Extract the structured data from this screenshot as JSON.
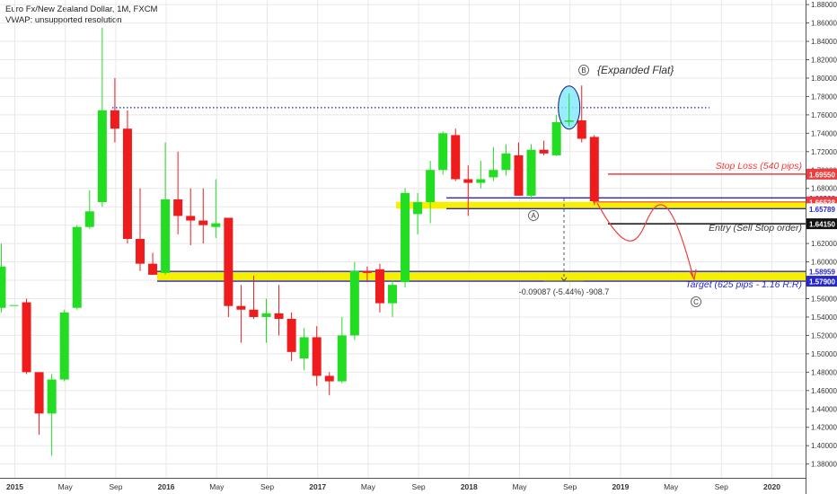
{
  "header": {
    "title": "Euro Fx/New Zealand Dollar, 1M, FXCM",
    "indicator": "VWAP: unsupported resolution"
  },
  "chart_data": {
    "type": "candlestick",
    "symbol": "EURNZD",
    "timeframe": "1M",
    "ylim": [
      1.365,
      1.885
    ],
    "y_ticks": [
      "1.38000",
      "1.40000",
      "1.42000",
      "1.44000",
      "1.46000",
      "1.48000",
      "1.50000",
      "1.52000",
      "1.54000",
      "1.56000",
      "1.58000",
      "1.60000",
      "1.62000",
      "1.64000",
      "1.66000",
      "1.68000",
      "1.70000",
      "1.72000",
      "1.74000",
      "1.76000",
      "1.78000",
      "1.80000",
      "1.82000",
      "1.84000",
      "1.86000",
      "1.88000"
    ],
    "x_ticks": [
      {
        "label": "2015",
        "m": 0,
        "bold": true
      },
      {
        "label": "May",
        "m": 4
      },
      {
        "label": "Sep",
        "m": 8
      },
      {
        "label": "2016",
        "m": 12,
        "bold": true
      },
      {
        "label": "May",
        "m": 16
      },
      {
        "label": "Sep",
        "m": 20
      },
      {
        "label": "2017",
        "m": 24,
        "bold": true
      },
      {
        "label": "May",
        "m": 28
      },
      {
        "label": "Sep",
        "m": 32
      },
      {
        "label": "2018",
        "m": 36,
        "bold": true
      },
      {
        "label": "May",
        "m": 40
      },
      {
        "label": "Sep",
        "m": 44
      },
      {
        "label": "2019",
        "m": 48,
        "bold": true
      },
      {
        "label": "May",
        "m": 52
      },
      {
        "label": "Sep",
        "m": 56
      },
      {
        "label": "2020",
        "m": 60,
        "bold": true
      }
    ],
    "candles": [
      {
        "date": "2014-12",
        "o": 1.55,
        "h": 1.62,
        "l": 1.545,
        "c": 1.595
      },
      {
        "date": "2015-01",
        "o": 1.553,
        "h": 1.553,
        "l": 1.553,
        "c": 1.553
      },
      {
        "date": "2015-02",
        "o": 1.556,
        "h": 1.56,
        "l": 1.478,
        "c": 1.48
      },
      {
        "date": "2015-03",
        "o": 1.48,
        "h": 1.48,
        "l": 1.412,
        "c": 1.435
      },
      {
        "date": "2015-04",
        "o": 1.435,
        "h": 1.478,
        "l": 1.389,
        "c": 1.472
      },
      {
        "date": "2015-05",
        "o": 1.472,
        "h": 1.548,
        "l": 1.47,
        "c": 1.545
      },
      {
        "date": "2015-06",
        "o": 1.55,
        "h": 1.64,
        "l": 1.548,
        "c": 1.638
      },
      {
        "date": "2015-07",
        "o": 1.638,
        "h": 1.678,
        "l": 1.636,
        "c": 1.655
      },
      {
        "date": "2015-08",
        "o": 1.665,
        "h": 1.855,
        "l": 1.66,
        "c": 1.765
      },
      {
        "date": "2015-09",
        "o": 1.765,
        "h": 1.8,
        "l": 1.73,
        "c": 1.745
      },
      {
        "date": "2015-10",
        "o": 1.745,
        "h": 1.765,
        "l": 1.62,
        "c": 1.625
      },
      {
        "date": "2015-11",
        "o": 1.625,
        "h": 1.68,
        "l": 1.59,
        "c": 1.598
      },
      {
        "date": "2015-12",
        "o": 1.598,
        "h": 1.61,
        "l": 1.586,
        "c": 1.586
      },
      {
        "date": "2016-01",
        "o": 1.588,
        "h": 1.73,
        "l": 1.586,
        "c": 1.668
      },
      {
        "date": "2016-02",
        "o": 1.668,
        "h": 1.72,
        "l": 1.63,
        "c": 1.65
      },
      {
        "date": "2016-03",
        "o": 1.65,
        "h": 1.68,
        "l": 1.618,
        "c": 1.645
      },
      {
        "date": "2016-04",
        "o": 1.645,
        "h": 1.68,
        "l": 1.62,
        "c": 1.64
      },
      {
        "date": "2016-05",
        "o": 1.638,
        "h": 1.69,
        "l": 1.626,
        "c": 1.642
      },
      {
        "date": "2016-06",
        "o": 1.648,
        "h": 1.648,
        "l": 1.54,
        "c": 1.552
      },
      {
        "date": "2016-07",
        "o": 1.552,
        "h": 1.575,
        "l": 1.512,
        "c": 1.548
      },
      {
        "date": "2016-08",
        "o": 1.548,
        "h": 1.585,
        "l": 1.538,
        "c": 1.54
      },
      {
        "date": "2016-09",
        "o": 1.54,
        "h": 1.56,
        "l": 1.512,
        "c": 1.544
      },
      {
        "date": "2016-10",
        "o": 1.544,
        "h": 1.575,
        "l": 1.52,
        "c": 1.538
      },
      {
        "date": "2016-11",
        "o": 1.538,
        "h": 1.545,
        "l": 1.492,
        "c": 1.502
      },
      {
        "date": "2016-12",
        "o": 1.495,
        "h": 1.528,
        "l": 1.482,
        "c": 1.518
      },
      {
        "date": "2017-01",
        "o": 1.518,
        "h": 1.53,
        "l": 1.465,
        "c": 1.476
      },
      {
        "date": "2017-02",
        "o": 1.476,
        "h": 1.48,
        "l": 1.455,
        "c": 1.47
      },
      {
        "date": "2017-03",
        "o": 1.47,
        "h": 1.54,
        "l": 1.468,
        "c": 1.52
      },
      {
        "date": "2017-04",
        "o": 1.52,
        "h": 1.6,
        "l": 1.515,
        "c": 1.59
      },
      {
        "date": "2017-05",
        "o": 1.59,
        "h": 1.595,
        "l": 1.578,
        "c": 1.588
      },
      {
        "date": "2017-06",
        "o": 1.592,
        "h": 1.598,
        "l": 1.545,
        "c": 1.555
      },
      {
        "date": "2017-07",
        "o": 1.555,
        "h": 1.58,
        "l": 1.54,
        "c": 1.575
      },
      {
        "date": "2017-08",
        "o": 1.578,
        "h": 1.68,
        "l": 1.572,
        "c": 1.675
      },
      {
        "date": "2017-09",
        "o": 1.652,
        "h": 1.675,
        "l": 1.63,
        "c": 1.665
      },
      {
        "date": "2017-10",
        "o": 1.665,
        "h": 1.71,
        "l": 1.642,
        "c": 1.7
      },
      {
        "date": "2017-11",
        "o": 1.7,
        "h": 1.742,
        "l": 1.695,
        "c": 1.74
      },
      {
        "date": "2017-12",
        "o": 1.738,
        "h": 1.745,
        "l": 1.688,
        "c": 1.69
      },
      {
        "date": "2018-01",
        "o": 1.69,
        "h": 1.705,
        "l": 1.65,
        "c": 1.686
      },
      {
        "date": "2018-02",
        "o": 1.686,
        "h": 1.71,
        "l": 1.68,
        "c": 1.69
      },
      {
        "date": "2018-03",
        "o": 1.692,
        "h": 1.725,
        "l": 1.688,
        "c": 1.7
      },
      {
        "date": "2018-04",
        "o": 1.7,
        "h": 1.728,
        "l": 1.694,
        "c": 1.718
      },
      {
        "date": "2018-05",
        "o": 1.716,
        "h": 1.73,
        "l": 1.672,
        "c": 1.672
      },
      {
        "date": "2018-06",
        "o": 1.672,
        "h": 1.728,
        "l": 1.668,
        "c": 1.722
      },
      {
        "date": "2018-07",
        "o": 1.722,
        "h": 1.732,
        "l": 1.716,
        "c": 1.718
      },
      {
        "date": "2018-08",
        "o": 1.716,
        "h": 1.76,
        "l": 1.715,
        "c": 1.752
      },
      {
        "date": "2018-09",
        "o": 1.752,
        "h": 1.783,
        "l": 1.748,
        "c": 1.754
      },
      {
        "date": "2018-10",
        "o": 1.754,
        "h": 1.792,
        "l": 1.73,
        "c": 1.734
      },
      {
        "date": "2018-11",
        "o": 1.736,
        "h": 1.738,
        "l": 1.662,
        "c": 1.666
      }
    ],
    "levels": [
      {
        "name": "stop-loss",
        "value": 1.6955,
        "label": "1.69550",
        "color": "#f03c3c"
      },
      {
        "name": "zone-top",
        "value": 1.66966,
        "label": "1.66966",
        "color": "#2727d0"
      },
      {
        "name": "zone-mid",
        "value": 1.66528,
        "label": "1.66528",
        "color": "#f03c3c"
      },
      {
        "name": "zone-bottom",
        "value": 1.65789,
        "label": "1.65789",
        "color": "#2727d0"
      },
      {
        "name": "entry",
        "value": 1.6415,
        "label": "1.64150",
        "color": "#111111"
      },
      {
        "name": "target-top",
        "value": 1.58959,
        "label": "1.58959",
        "color": "#2727d0"
      },
      {
        "name": "target-bottom",
        "value": 1.579,
        "label": "1.57900",
        "color": "#2727d0"
      }
    ],
    "dotted_high": 1.7678,
    "annotations": {
      "expanded_flat": "{Expanded Flat}",
      "stop_loss": "Stop Loss (540 pips)",
      "entry": "Entry (Sell Stop order)",
      "target": "Target (625 pips - 1.16 R:R)",
      "measure": "-0.09087 (-5.44%) -908.7",
      "wave_a": "A",
      "wave_b": "B",
      "wave_c": "C"
    },
    "colors": {
      "up": "#22dd22",
      "down": "#ee1c1c",
      "zone": "#f6f000",
      "highlight": "#7ee8ff",
      "grid": "#e8e8e8"
    }
  }
}
